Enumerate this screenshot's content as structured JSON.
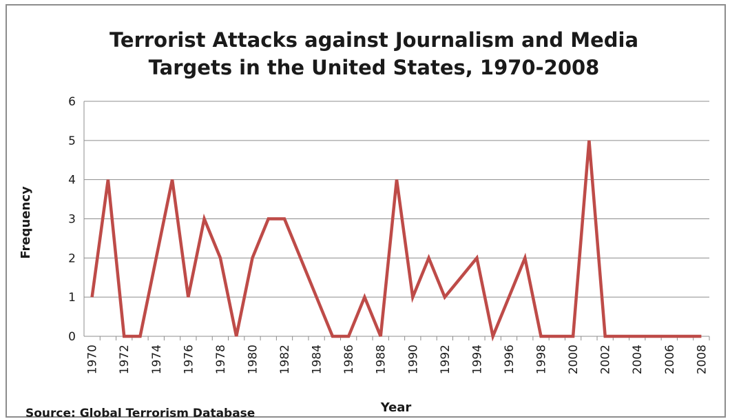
{
  "chart_data": {
    "type": "line",
    "title_lines": [
      "Terrorist Attacks against Journalism and Media",
      "Targets in the United States, 1970-2008"
    ],
    "xlabel": "Year",
    "ylabel": "Frequency",
    "source": "Source: Global Terrorism Database",
    "x": [
      1970,
      1971,
      1972,
      1973,
      1974,
      1975,
      1976,
      1977,
      1978,
      1979,
      1980,
      1981,
      1982,
      1983,
      1984,
      1985,
      1986,
      1987,
      1988,
      1989,
      1990,
      1991,
      1992,
      1993,
      1994,
      1995,
      1996,
      1997,
      1998,
      1999,
      2000,
      2001,
      2002,
      2003,
      2004,
      2005,
      2006,
      2007,
      2008
    ],
    "series": [
      {
        "values": [
          1,
          4,
          0,
          0,
          2,
          4,
          1,
          3,
          2,
          0,
          2,
          3,
          3,
          2,
          1,
          0,
          0,
          1,
          0,
          4,
          1,
          2,
          1,
          1.5,
          2,
          0,
          1,
          2,
          0,
          0,
          0,
          5,
          0,
          0,
          0,
          0,
          0,
          0,
          0
        ]
      }
    ],
    "x_tick_labels": [
      "1970",
      "1972",
      "1974",
      "1976",
      "1978",
      "1980",
      "1982",
      "1984",
      "1986",
      "1988",
      "1990",
      "1992",
      "1994",
      "1996",
      "1998",
      "2000",
      "2002",
      "2004",
      "2006",
      "2008"
    ],
    "y_tick_labels": [
      "0",
      "1",
      "2",
      "3",
      "4",
      "5",
      "6"
    ],
    "ylim": [
      0,
      6
    ],
    "grid": true,
    "line_color": "#be4b48",
    "grid_color": "#8c8c8c"
  }
}
